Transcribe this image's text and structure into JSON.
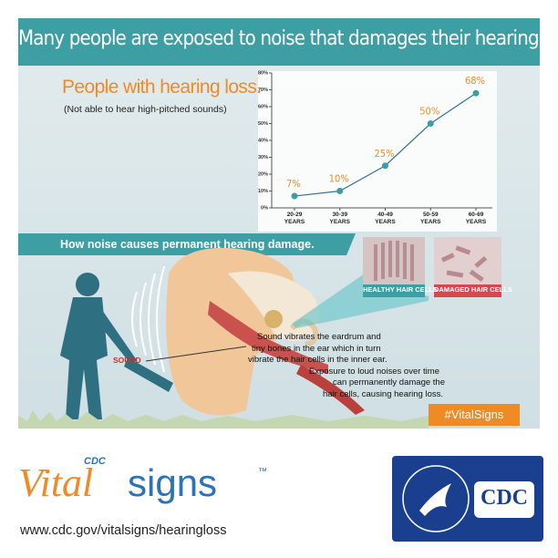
{
  "header": {
    "title": "Many people are exposed to noise that damages their hearing."
  },
  "chart_data": {
    "type": "line",
    "title": "People with hearing loss.",
    "subtitle": "(Not able to hear high-pitched sounds)",
    "categories": [
      "20-29 YEARS",
      "30-39 YEARS",
      "40-49 YEARS",
      "50-59 YEARS",
      "60-69 YEARS"
    ],
    "values": [
      7,
      10,
      25,
      50,
      68
    ],
    "value_labels": [
      "7%",
      "10%",
      "25%",
      "50%",
      "68%"
    ],
    "color": "#3a9ea4",
    "line_color": "#3b6f95",
    "label_color": "#f08a24",
    "ylim": [
      0,
      80
    ],
    "yticks": [
      {
        "value": 0,
        "label": "0%"
      },
      {
        "value": 10,
        "label": "10%"
      },
      {
        "value": 20,
        "label": "20%"
      },
      {
        "value": 30,
        "label": "30%"
      },
      {
        "value": 40,
        "label": "40%"
      },
      {
        "value": 50,
        "label": "50%"
      },
      {
        "value": 60,
        "label": "60%"
      },
      {
        "value": 70,
        "label": "70%"
      },
      {
        "value": 80,
        "label": "80%"
      }
    ],
    "grid": false
  },
  "section": {
    "heading": "How noise causes permanent hearing damage."
  },
  "illustration": {
    "healthy": "HEALTHY HAIR CELLS",
    "damaged": "DAMAGED HAIR CELLS",
    "sound": "SOUND",
    "description": [
      "Sound vibrates the eardrum and",
      "tiny bones in the ear which in turn",
      "vibrate the hair cells in the inner ear.",
      "Exposure to loud noises over time",
      "can permanently damage the",
      "hair cells, causing hearing loss."
    ],
    "hashtag": "#VitalSigns"
  },
  "footer": {
    "logo_cdc": "CDC",
    "logo_vital": "Vital",
    "logo_signs": "signs",
    "logo_tm": "™",
    "url": "www.cdc.gov/vitalsigns/hearingloss",
    "badge": "CDC"
  }
}
